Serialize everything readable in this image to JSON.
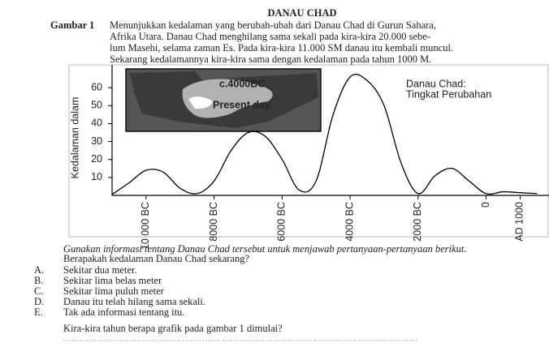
{
  "title": "DANAU CHAD",
  "figure": {
    "label": "Gambar 1",
    "caption": [
      "Menunjukkan kedalaman yang berubah-ubah dari Danau Chad di Gurun Sahara,",
      "Afrika Utara. Danau Chad menghilang sama sekali pada kira-kira 20.000 sebe-",
      "lum Masehi, selama zaman Es. Pada kira-kira 11.000 SM danau itu kembali muncul.",
      "Sekarang kedalamannya kira-kira sama dengan kedalaman pada tahun 1000 M."
    ]
  },
  "chart_data": {
    "type": "line",
    "ylabel": "Kedalaman dalam",
    "annotation": [
      "Danau Chad:",
      "Tingkat Perubahan"
    ],
    "inset_labels": [
      "c.4000BC",
      "Present day"
    ],
    "color": "#000000",
    "x": [
      -11000,
      -10500,
      -10000,
      -9500,
      -9000,
      -8500,
      -8000,
      -7500,
      -7000,
      -6500,
      -6000,
      -5500,
      -5000,
      -4500,
      -4000,
      -3500,
      -3000,
      -2500,
      -2000,
      -1500,
      -1000,
      -500,
      0,
      500,
      1000,
      1500
    ],
    "values": [
      0.5,
      7,
      14,
      13,
      4,
      1,
      8,
      25,
      35,
      33,
      20,
      3,
      8,
      45,
      66,
      64,
      50,
      18,
      1,
      11,
      15,
      8,
      1,
      2,
      1.5,
      1
    ],
    "xlim": [
      -11000,
      1850
    ],
    "ylim": [
      0,
      70
    ],
    "xticks": [
      {
        "value": -10000,
        "label": "10 000 BC"
      },
      {
        "value": -8000,
        "label": "8000 BC"
      },
      {
        "value": -6000,
        "label": "6000 BC"
      },
      {
        "value": -4000,
        "label": "4000 BC"
      },
      {
        "value": -2000,
        "label": "2000 BC"
      },
      0,
      {
        "value": 1000,
        "label": "AD 1000"
      }
    ],
    "yticks": [
      10,
      20,
      30,
      40,
      50,
      60
    ]
  },
  "instruction": "Gunakan informasi tentang Danau Chad tersebut untuk menjawab pertanyaan-pertanyaan berikut.",
  "questions": [
    {
      "text": "Berapakah kedalaman Danau Chad sekarang?",
      "options": [
        {
          "letter": "A.",
          "text": "Sekitar dua meter."
        },
        {
          "letter": "B.",
          "text": "Sekitar lima belas meter"
        },
        {
          "letter": "C.",
          "text": "Sekitar lima puluh meter"
        },
        {
          "letter": "D.",
          "text": "Danau itu telah hilang sama sekali."
        },
        {
          "letter": "E.",
          "text": "Tak ada informasi tentang itu."
        }
      ]
    },
    {
      "text": "Kira-kira tahun berapa grafik pada gambar 1 dimulai?"
    }
  ]
}
